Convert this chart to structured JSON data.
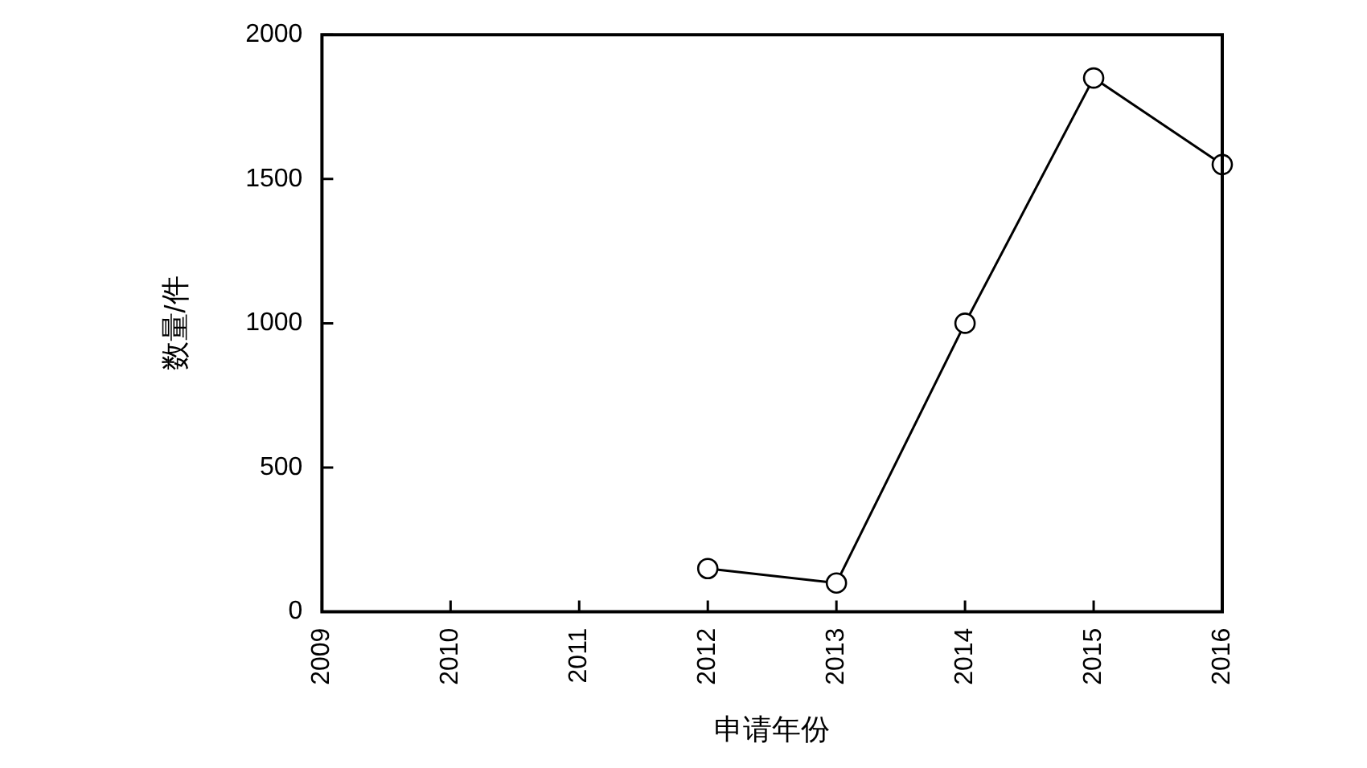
{
  "chart_data": {
    "type": "line",
    "xlabel": "申请年份",
    "ylabel": "数量/件",
    "x": [
      2012,
      2013,
      2014,
      2015,
      2016
    ],
    "series": [
      {
        "color": "#000000",
        "values": [
          150,
          100,
          1000,
          1850,
          1550
        ]
      }
    ],
    "xlim": [
      2009,
      2016
    ],
    "xticks": [
      2009,
      2010,
      2011,
      2012,
      2013,
      2014,
      2015,
      2016
    ],
    "ylim": [
      0,
      2000
    ],
    "yticks": [
      0,
      500,
      1000,
      1500,
      2000
    ],
    "grid": false,
    "legend": false,
    "marker": "circle",
    "line_style": "solid"
  }
}
